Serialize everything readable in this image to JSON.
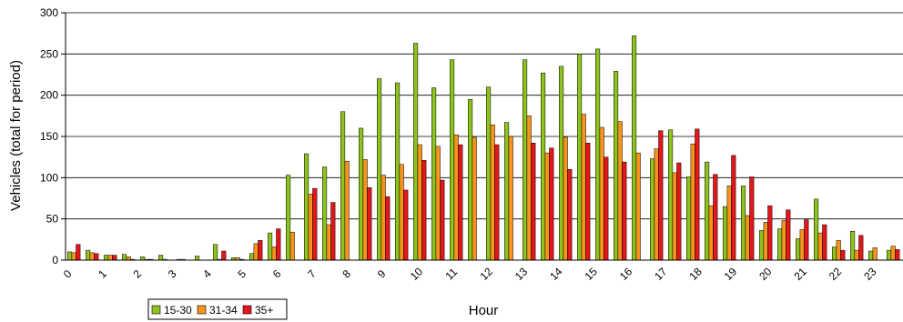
{
  "chart_data": {
    "type": "bar",
    "xlabel": "Hour",
    "ylabel": "Vehicles (total for period)",
    "ylim": [
      0,
      300
    ],
    "yticks": [
      0,
      50,
      100,
      150,
      200,
      250,
      300
    ],
    "grid": true,
    "legend_position": "bottom-left",
    "hour_ticks": [
      "0",
      "1",
      "2",
      "3",
      "4",
      "5",
      "6",
      "7",
      "8",
      "9",
      "10",
      "11",
      "12",
      "13",
      "14",
      "15",
      "16",
      "17",
      "18",
      "19",
      "20",
      "21",
      "22",
      "23"
    ],
    "series": [
      {
        "name": "15-30",
        "color": "#8dc21f",
        "values": [
          10,
          12,
          6,
          7,
          4,
          6,
          1,
          5,
          19,
          3,
          8,
          33,
          103,
          129,
          113,
          180,
          160,
          220,
          215,
          263,
          209,
          243,
          195,
          210,
          167,
          243,
          227,
          235,
          250,
          256,
          229,
          272,
          123,
          158,
          101,
          119,
          65,
          90,
          36,
          38,
          26,
          74,
          16,
          35,
          11,
          12
        ]
      },
      {
        "name": "31-34",
        "color": "#f7941d",
        "values": [
          9,
          9,
          6,
          4,
          1,
          1,
          1,
          0,
          1,
          3,
          20,
          16,
          34,
          80,
          43,
          120,
          122,
          103,
          116,
          140,
          138,
          152,
          149,
          164,
          150,
          175,
          130,
          149,
          177,
          161,
          168,
          130,
          135,
          106,
          141,
          66,
          90,
          54,
          46,
          48,
          37,
          33,
          24,
          12,
          15,
          17
        ]
      },
      {
        "name": "35+",
        "color": "#e3161b",
        "values": [
          19,
          8,
          6,
          1,
          1,
          0,
          0,
          0,
          11,
          1,
          24,
          38,
          0,
          87,
          70,
          0,
          88,
          77,
          85,
          121,
          97,
          140,
          0,
          140,
          0,
          142,
          136,
          110,
          142,
          125,
          119,
          0,
          157,
          118,
          159,
          104,
          127,
          101,
          66,
          61,
          49,
          43,
          12,
          30,
          0,
          13
        ]
      }
    ]
  }
}
